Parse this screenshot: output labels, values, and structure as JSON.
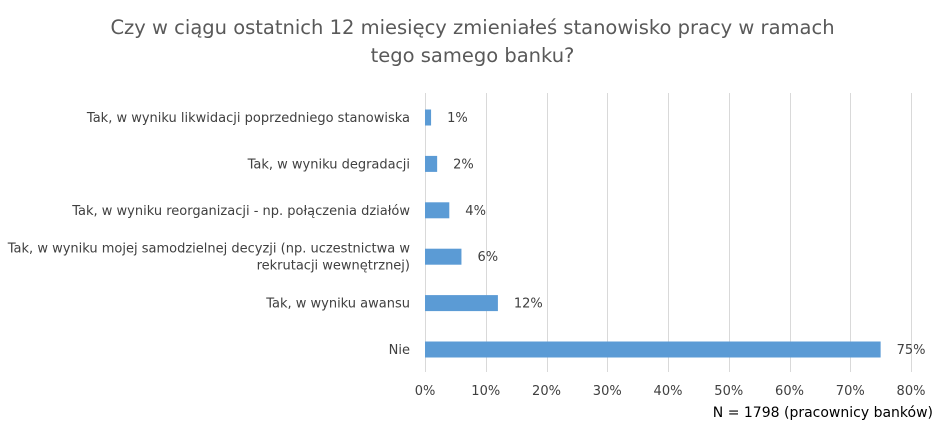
{
  "chart_data": {
    "type": "bar",
    "orientation": "horizontal",
    "title": "Czy w ciągu ostatnich 12 miesięcy zmieniałeś stanowisko pracy w ramach\ntego samego banku?",
    "categories": [
      [
        "Tak, w wyniku likwidacji poprzedniego stanowiska"
      ],
      [
        "Tak, w wyniku degradacji"
      ],
      [
        "Tak, w wyniku reorganizacji - np. połączenia działów"
      ],
      [
        "Tak, w wyniku mojej samodzielnej decyzji (np. uczestnictwa w",
        "rekrutacji wewnętrznej)"
      ],
      [
        "Tak, w wyniku awansu"
      ],
      [
        "Nie"
      ]
    ],
    "values": [
      1,
      2,
      4,
      6,
      12,
      75
    ],
    "data_labels": [
      "1%",
      "2%",
      "4%",
      "6%",
      "12%",
      "75%"
    ],
    "xlim": [
      0,
      80
    ],
    "xticks": [
      0,
      10,
      20,
      30,
      40,
      50,
      60,
      70,
      80
    ],
    "xtick_labels": [
      "0%",
      "10%",
      "20%",
      "30%",
      "40%",
      "50%",
      "60%",
      "70%",
      "80%"
    ],
    "grid": true,
    "legend": "none",
    "bar_color": "#5b9bd5",
    "note": "N = 1798 (pracownicy banków)"
  }
}
